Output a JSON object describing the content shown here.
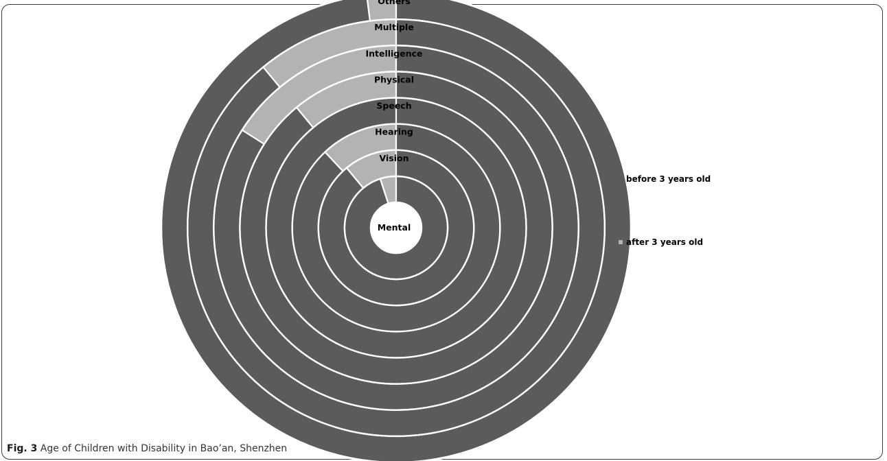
{
  "colors": {
    "before": "#5b5b5b",
    "after": "#b3b3b3",
    "separator": "#ffffff"
  },
  "legend": {
    "placement": "right",
    "before_label": "before 3 years old",
    "after_label": "after 3 years old"
  },
  "caption": {
    "label": "Fig. 3",
    "text": "Age of Children with Disability in Bao’an, Shenzhen"
  },
  "chart_data": {
    "type": "doughnut",
    "title": "",
    "ring_order": "inner-to-outer",
    "series": [
      {
        "name": "before 3 years old",
        "color": "#5b5b5b"
      },
      {
        "name": "after 3 years old",
        "color": "#b3b3b3"
      }
    ],
    "rings": [
      {
        "label": "Mental",
        "before_pct": 95,
        "after_pct": 5
      },
      {
        "label": "Vision",
        "before_pct": 89,
        "after_pct": 11
      },
      {
        "label": "Hearing",
        "before_pct": 88,
        "after_pct": 12
      },
      {
        "label": "Speech",
        "before_pct": 100,
        "after_pct": 0
      },
      {
        "label": "Physical",
        "before_pct": 89,
        "after_pct": 11
      },
      {
        "label": "Intelligence",
        "before_pct": 84,
        "after_pct": 16
      },
      {
        "label": "Multiple",
        "before_pct": 89,
        "after_pct": 11
      },
      {
        "label": "Others",
        "before_pct": 98,
        "after_pct": 2
      }
    ]
  }
}
